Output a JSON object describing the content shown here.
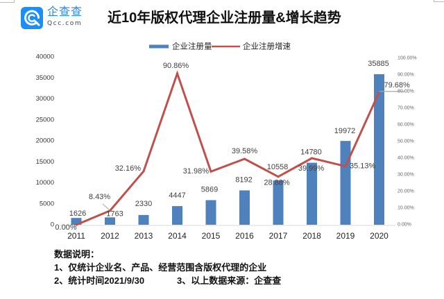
{
  "logo": {
    "name_cn": "企查查",
    "domain": "Qcc.com"
  },
  "colors": {
    "bar": "#4f81bd",
    "line": "#c0504d",
    "logo_blue": "#1e8ef5",
    "axis": "#d9d9d9",
    "leader": "#a6a6a6"
  },
  "chart_data": {
    "type": "bar",
    "title": "近10年版权代理企业注册量&增长趋势",
    "categories": [
      "2011",
      "2012",
      "2013",
      "2014",
      "2015",
      "2016",
      "2017",
      "2018",
      "2019",
      "2020"
    ],
    "series": [
      {
        "name": "企业注册量",
        "type": "bar",
        "axis": "left",
        "values": [
          1626,
          1763,
          2330,
          4447,
          5869,
          8192,
          10558,
          14780,
          19972,
          35885
        ],
        "labels": [
          "1626",
          "1763",
          "2330",
          "4447",
          "5869",
          "8192",
          "10558",
          "14780",
          "19972",
          "35885"
        ]
      },
      {
        "name": "企业注册增速",
        "type": "line",
        "axis": "right",
        "unit": "%",
        "values": [
          0.0,
          8.43,
          32.16,
          90.86,
          31.98,
          39.58,
          28.88,
          39.99,
          35.13,
          79.68
        ],
        "labels": [
          "0.00%",
          "8.43%",
          "32.16%",
          "90.86%",
          "31.98%",
          "39.58%",
          "28.88%",
          "39.99%",
          "35.13%",
          "79.68%"
        ]
      }
    ],
    "y_left": {
      "lim": [
        0,
        40000
      ],
      "ticks": [
        0,
        5000,
        10000,
        15000,
        20000,
        25000,
        30000,
        35000,
        40000
      ],
      "tick_labels": [
        "0",
        "5000",
        "10000",
        "15000",
        "20000",
        "25000",
        "30000",
        "35000",
        "40000"
      ]
    },
    "y_right": {
      "lim": [
        0,
        100
      ],
      "ticks": [
        0,
        10,
        20,
        30,
        40,
        50,
        60,
        70,
        80,
        90,
        100
      ],
      "tick_labels": [
        "0.00%",
        "10.00%",
        "20.00%",
        "30.00%",
        "40.00%",
        "50.00%",
        "60.00%",
        "70.00%",
        "80.00%",
        "90.00%",
        "100.00%"
      ]
    },
    "xlabel": "",
    "ylabel": "",
    "grid": false,
    "legend": "top-center"
  },
  "notes": {
    "heading": "数据说明：",
    "line1": "1、仅统计企业名、产品、经营范围含版权代理的企业",
    "line2a": "2、统计时间2021/9/30",
    "line2b": "3、以上数据来源：企查查"
  }
}
